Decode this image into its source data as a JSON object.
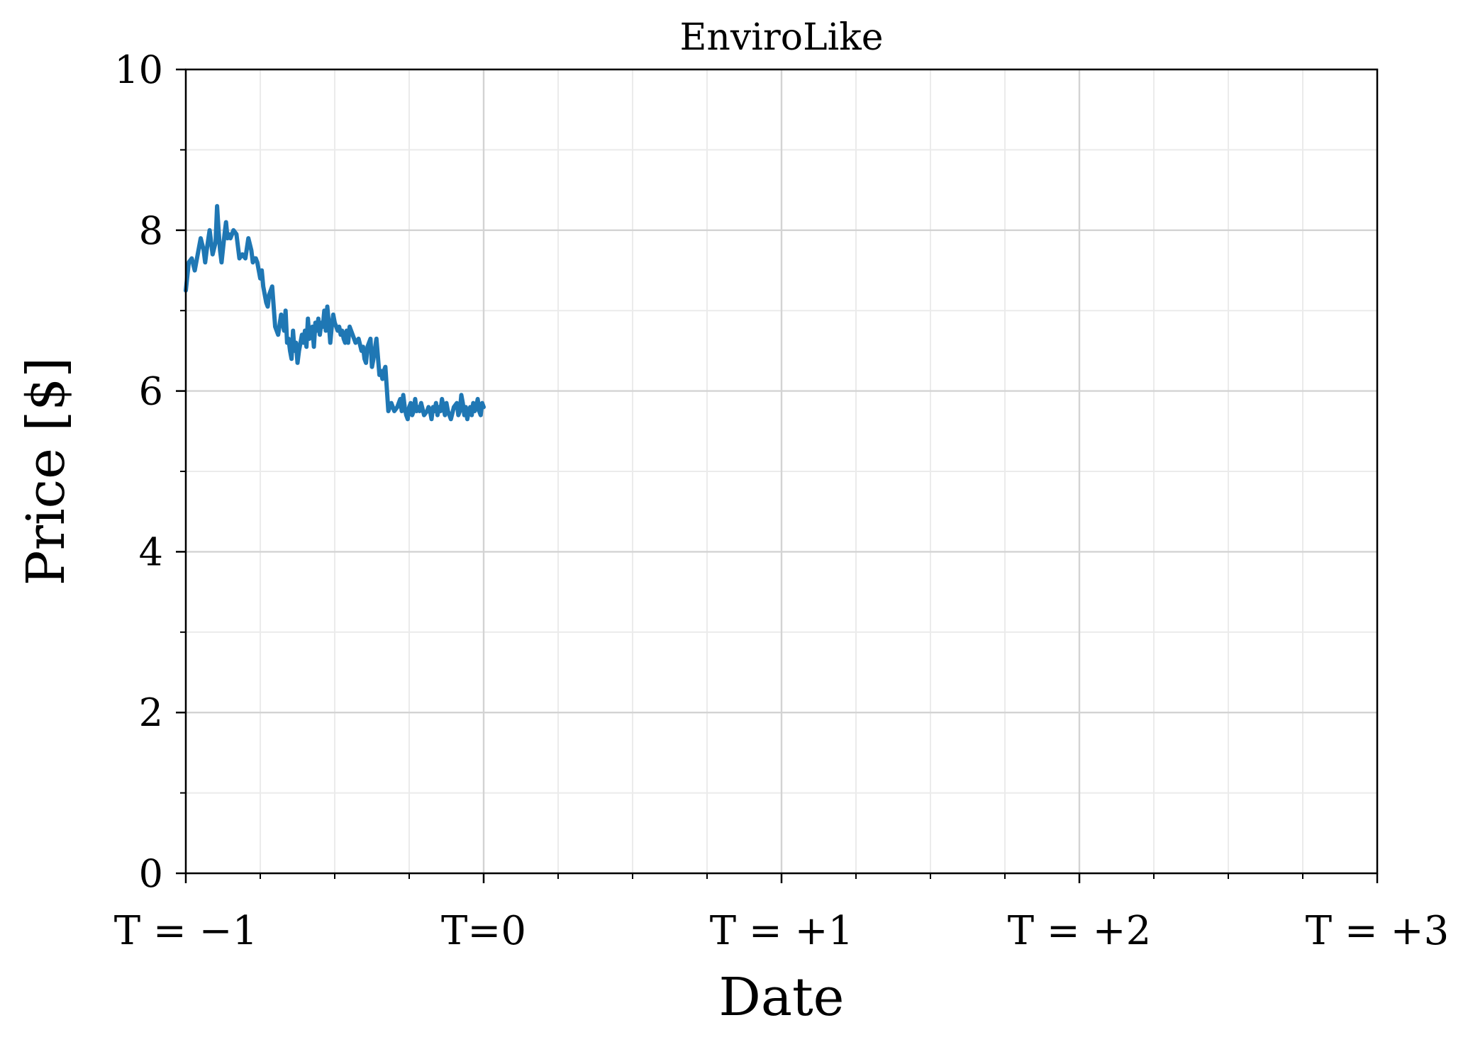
{
  "chart_data": {
    "type": "line",
    "title": "EnviroLike",
    "xlabel": "Date",
    "ylabel": "Price [$]",
    "xlim": [
      -1,
      3
    ],
    "ylim": [
      0,
      10
    ],
    "x_ticks": [
      {
        "value": -1,
        "label": "T = −1"
      },
      {
        "value": 0,
        "label": "T=0"
      },
      {
        "value": 1,
        "label": "T = +1"
      },
      {
        "value": 2,
        "label": "T = +2"
      },
      {
        "value": 3,
        "label": "T = +3"
      }
    ],
    "y_ticks": [
      0,
      2,
      4,
      6,
      8,
      10
    ],
    "x_minor_ticks": [
      -0.75,
      -0.5,
      -0.25,
      0.25,
      0.5,
      0.75,
      1.25,
      1.5,
      1.75,
      2.25,
      2.5,
      2.75
    ],
    "y_minor_ticks": [
      1,
      3,
      5,
      7,
      9
    ],
    "grid": true,
    "series": [
      {
        "color": "#1f77b4",
        "x": [
          -1.0,
          -0.99,
          -0.98,
          -0.97,
          -0.96,
          -0.95,
          -0.94,
          -0.935,
          -0.93,
          -0.92,
          -0.91,
          -0.9,
          -0.895,
          -0.89,
          -0.885,
          -0.88,
          -0.87,
          -0.865,
          -0.86,
          -0.855,
          -0.85,
          -0.845,
          -0.84,
          -0.83,
          -0.82,
          -0.81,
          -0.8,
          -0.79,
          -0.78,
          -0.775,
          -0.77,
          -0.765,
          -0.76,
          -0.75,
          -0.745,
          -0.74,
          -0.73,
          -0.725,
          -0.72,
          -0.71,
          -0.7,
          -0.69,
          -0.68,
          -0.675,
          -0.67,
          -0.665,
          -0.66,
          -0.655,
          -0.65,
          -0.645,
          -0.64,
          -0.635,
          -0.63,
          -0.625,
          -0.62,
          -0.615,
          -0.61,
          -0.605,
          -0.6,
          -0.595,
          -0.59,
          -0.585,
          -0.58,
          -0.575,
          -0.57,
          -0.565,
          -0.56,
          -0.555,
          -0.55,
          -0.545,
          -0.54,
          -0.535,
          -0.53,
          -0.525,
          -0.52,
          -0.515,
          -0.51,
          -0.505,
          -0.5,
          -0.495,
          -0.49,
          -0.485,
          -0.48,
          -0.475,
          -0.47,
          -0.465,
          -0.46,
          -0.455,
          -0.45,
          -0.44,
          -0.43,
          -0.42,
          -0.41,
          -0.405,
          -0.4,
          -0.395,
          -0.39,
          -0.385,
          -0.38,
          -0.375,
          -0.37,
          -0.36,
          -0.35,
          -0.345,
          -0.34,
          -0.335,
          -0.33,
          -0.32,
          -0.31,
          -0.3,
          -0.29,
          -0.28,
          -0.275,
          -0.27,
          -0.265,
          -0.26,
          -0.255,
          -0.25,
          -0.245,
          -0.24,
          -0.235,
          -0.23,
          -0.225,
          -0.22,
          -0.215,
          -0.21,
          -0.2,
          -0.19,
          -0.185,
          -0.18,
          -0.175,
          -0.17,
          -0.165,
          -0.16,
          -0.155,
          -0.15,
          -0.145,
          -0.14,
          -0.135,
          -0.13,
          -0.125,
          -0.12,
          -0.11,
          -0.1,
          -0.09,
          -0.085,
          -0.08,
          -0.075,
          -0.07,
          -0.065,
          -0.06,
          -0.055,
          -0.05,
          -0.045,
          -0.04,
          -0.035,
          -0.03,
          -0.025,
          -0.02,
          -0.015,
          -0.01,
          -0.005,
          0.0
        ],
        "y": [
          7.25,
          7.6,
          7.65,
          7.5,
          7.7,
          7.9,
          7.75,
          7.6,
          7.75,
          8.0,
          7.7,
          7.85,
          8.3,
          8.0,
          7.75,
          7.6,
          7.95,
          8.1,
          7.9,
          7.95,
          7.9,
          7.95,
          8.0,
          7.95,
          7.65,
          7.7,
          7.65,
          7.9,
          7.75,
          7.6,
          7.65,
          7.65,
          7.6,
          7.4,
          7.5,
          7.3,
          7.1,
          7.05,
          7.2,
          7.3,
          6.8,
          6.7,
          6.95,
          6.85,
          6.75,
          7.0,
          6.6,
          6.65,
          6.5,
          6.4,
          6.75,
          6.5,
          6.6,
          6.35,
          6.5,
          6.6,
          6.7,
          6.6,
          6.75,
          6.55,
          6.9,
          6.65,
          6.75,
          6.8,
          6.55,
          6.85,
          6.75,
          6.9,
          6.7,
          6.85,
          6.8,
          7.0,
          6.75,
          7.05,
          6.85,
          6.6,
          6.8,
          6.95,
          6.85,
          6.8,
          6.75,
          6.8,
          6.7,
          6.75,
          6.65,
          6.6,
          6.75,
          6.6,
          6.8,
          6.7,
          6.6,
          6.65,
          6.5,
          6.55,
          6.4,
          6.35,
          6.55,
          6.6,
          6.65,
          6.3,
          6.4,
          6.65,
          6.2,
          6.25,
          6.15,
          6.25,
          6.3,
          5.75,
          5.85,
          5.75,
          5.8,
          5.9,
          5.75,
          5.95,
          5.8,
          5.7,
          5.65,
          5.8,
          5.85,
          5.7,
          5.75,
          5.9,
          5.75,
          5.8,
          5.75,
          5.85,
          5.7,
          5.75,
          5.8,
          5.75,
          5.65,
          5.8,
          5.75,
          5.85,
          5.7,
          5.8,
          5.75,
          5.9,
          5.8,
          5.7,
          5.85,
          5.75,
          5.65,
          5.8,
          5.85,
          5.7,
          5.75,
          5.95,
          5.85,
          5.7,
          5.8,
          5.65,
          5.75,
          5.8,
          5.7,
          5.85,
          5.75,
          5.8,
          5.9,
          5.75,
          5.7,
          5.85,
          5.8
        ]
      }
    ]
  }
}
